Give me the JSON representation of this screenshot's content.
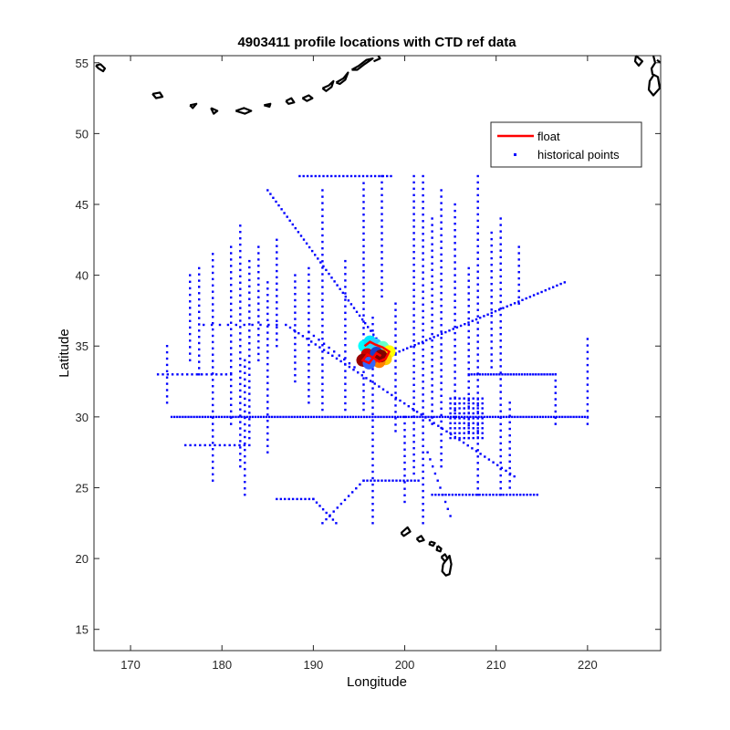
{
  "chart_data": {
    "type": "scatter",
    "title": "4903411 profile locations with CTD ref data",
    "xlabel": "Longitude",
    "ylabel": "Latitude",
    "xlim": [
      166,
      228
    ],
    "ylim": [
      13.5,
      55.5
    ],
    "x_ticks": [
      170,
      180,
      190,
      200,
      210,
      220
    ],
    "y_ticks": [
      15,
      20,
      25,
      30,
      35,
      40,
      45,
      50,
      55
    ],
    "grid": false,
    "legend": {
      "placement": "top-right",
      "entries": [
        {
          "label": "float",
          "marker": "line",
          "color": "#ff0000"
        },
        {
          "label": "historical points",
          "marker": "dot",
          "color": "#0000ff"
        }
      ]
    },
    "colors": {
      "historical": "#0000ff",
      "float": "#ff0000",
      "coast": "#000000"
    },
    "series": [
      {
        "role": "historical",
        "tracks": [
          {
            "from": [
              174.5,
              30
            ],
            "to": [
              220,
              30
            ],
            "n": 150
          },
          {
            "from": [
              185,
              46
            ],
            "to": [
              197.5,
              35
            ],
            "n": 42
          },
          {
            "from": [
              199,
              34.5
            ],
            "to": [
              217.5,
              39.5
            ],
            "n": 45
          },
          {
            "from": [
              187,
              36.5
            ],
            "to": [
              212,
              25.8
            ],
            "n": 55
          },
          {
            "from": [
              191,
              22.5
            ],
            "to": [
              195.5,
              25.5
            ],
            "n": 12
          },
          {
            "from": [
              195.5,
              25.5
            ],
            "to": [
              201.5,
              25.5
            ],
            "n": 16
          },
          {
            "from": [
              186,
              24.2
            ],
            "to": [
              190,
              24.2
            ],
            "n": 10
          },
          {
            "from": [
              190,
              24.2
            ],
            "to": [
              192.5,
              22.5
            ],
            "n": 8
          },
          {
            "from": [
              207,
              33
            ],
            "to": [
              216.5,
              33
            ],
            "n": 32
          },
          {
            "from": [
              203,
              24.5
            ],
            "to": [
              214.5,
              24.5
            ],
            "n": 32
          },
          {
            "from": [
              188.5,
              47
            ],
            "to": [
              198.5,
              47
            ],
            "n": 24
          },
          {
            "from": [
              176,
              28
            ],
            "to": [
              183,
              28
            ],
            "n": 14
          },
          {
            "from": [
              202.5,
              27.5
            ],
            "to": [
              205,
              23
            ],
            "n": 10
          },
          {
            "from": [
              189.5,
              36
            ],
            "to": [
              194.5,
              33.5
            ],
            "n": 10
          },
          {
            "from": [
              178,
              36.5
            ],
            "to": [
              186,
              36.5
            ],
            "n": 10
          },
          {
            "from": [
              173,
              33
            ],
            "to": [
              181,
              33
            ],
            "n": 16
          }
        ],
        "verticals": [
          {
            "lon": 174,
            "lat": [
              31,
              35
            ]
          },
          {
            "lon": 176.5,
            "lat": [
              34,
              40
            ]
          },
          {
            "lon": 177.5,
            "lat": [
              33,
              40.5
            ]
          },
          {
            "lon": 179,
            "lat": [
              25.5,
              41.5
            ]
          },
          {
            "lon": 181,
            "lat": [
              29.5,
              42
            ]
          },
          {
            "lon": 182,
            "lat": [
              26.5,
              43.5
            ]
          },
          {
            "lon": 182.5,
            "lat": [
              24.5,
              34
            ]
          },
          {
            "lon": 183,
            "lat": [
              28.5,
              41
            ]
          },
          {
            "lon": 184,
            "lat": [
              34,
              42
            ]
          },
          {
            "lon": 185,
            "lat": [
              27.5,
              39.5
            ]
          },
          {
            "lon": 186,
            "lat": [
              35,
              42.5
            ]
          },
          {
            "lon": 188,
            "lat": [
              32.5,
              40
            ]
          },
          {
            "lon": 189.5,
            "lat": [
              31,
              40.5
            ]
          },
          {
            "lon": 191,
            "lat": [
              30.5,
              46
            ]
          },
          {
            "lon": 193.5,
            "lat": [
              30.5,
              41
            ]
          },
          {
            "lon": 195.5,
            "lat": [
              30.5,
              46.5
            ]
          },
          {
            "lon": 196.5,
            "lat": [
              22.5,
              37
            ]
          },
          {
            "lon": 197.5,
            "lat": [
              38.5,
              47
            ]
          },
          {
            "lon": 199,
            "lat": [
              29,
              38
            ]
          },
          {
            "lon": 200,
            "lat": [
              24,
              30
            ]
          },
          {
            "lon": 201,
            "lat": [
              26,
              47
            ]
          },
          {
            "lon": 202,
            "lat": [
              22.5,
              47
            ]
          },
          {
            "lon": 203,
            "lat": [
              29.5,
              44
            ]
          },
          {
            "lon": 204,
            "lat": [
              26.5,
              46
            ]
          },
          {
            "lon": 205.5,
            "lat": [
              30,
              45
            ]
          },
          {
            "lon": 207,
            "lat": [
              28.5,
              40.5
            ]
          },
          {
            "lon": 208,
            "lat": [
              24.5,
              47
            ]
          },
          {
            "lon": 209.5,
            "lat": [
              33.5,
              43
            ]
          },
          {
            "lon": 210.5,
            "lat": [
              24.5,
              44
            ]
          },
          {
            "lon": 211.5,
            "lat": [
              25,
              31
            ]
          },
          {
            "lon": 212.5,
            "lat": [
              38,
              42
            ]
          },
          {
            "lon": 216.5,
            "lat": [
              29.5,
              33
            ]
          },
          {
            "lon": 220,
            "lat": [
              29.5,
              35.5
            ]
          }
        ],
        "cluster": {
          "lon": [
            205,
            208.5
          ],
          "lat": [
            28.5,
            31.5
          ]
        }
      },
      {
        "role": "float",
        "points": [
          [
            195.6,
            35.0
          ],
          [
            196.2,
            35.3
          ],
          [
            196.8,
            35.1
          ],
          [
            197.6,
            34.9
          ],
          [
            198.3,
            34.6
          ],
          [
            197.9,
            34.1
          ],
          [
            197.2,
            33.9
          ],
          [
            196.5,
            34.2
          ],
          [
            195.9,
            34.4
          ],
          [
            195.4,
            34.0
          ],
          [
            196.1,
            33.8
          ],
          [
            196.9,
            34.5
          ],
          [
            197.4,
            34.3
          ]
        ]
      }
    ],
    "coastlines": [
      {
        "name": "hawaii",
        "lat": [
          18.7,
          22.4
        ],
        "lon": [
          199.5,
          205.2
        ]
      },
      {
        "name": "aleutians",
        "lat": [
          51.5,
          55.5
        ],
        "lon": [
          166,
          228
        ]
      }
    ]
  }
}
